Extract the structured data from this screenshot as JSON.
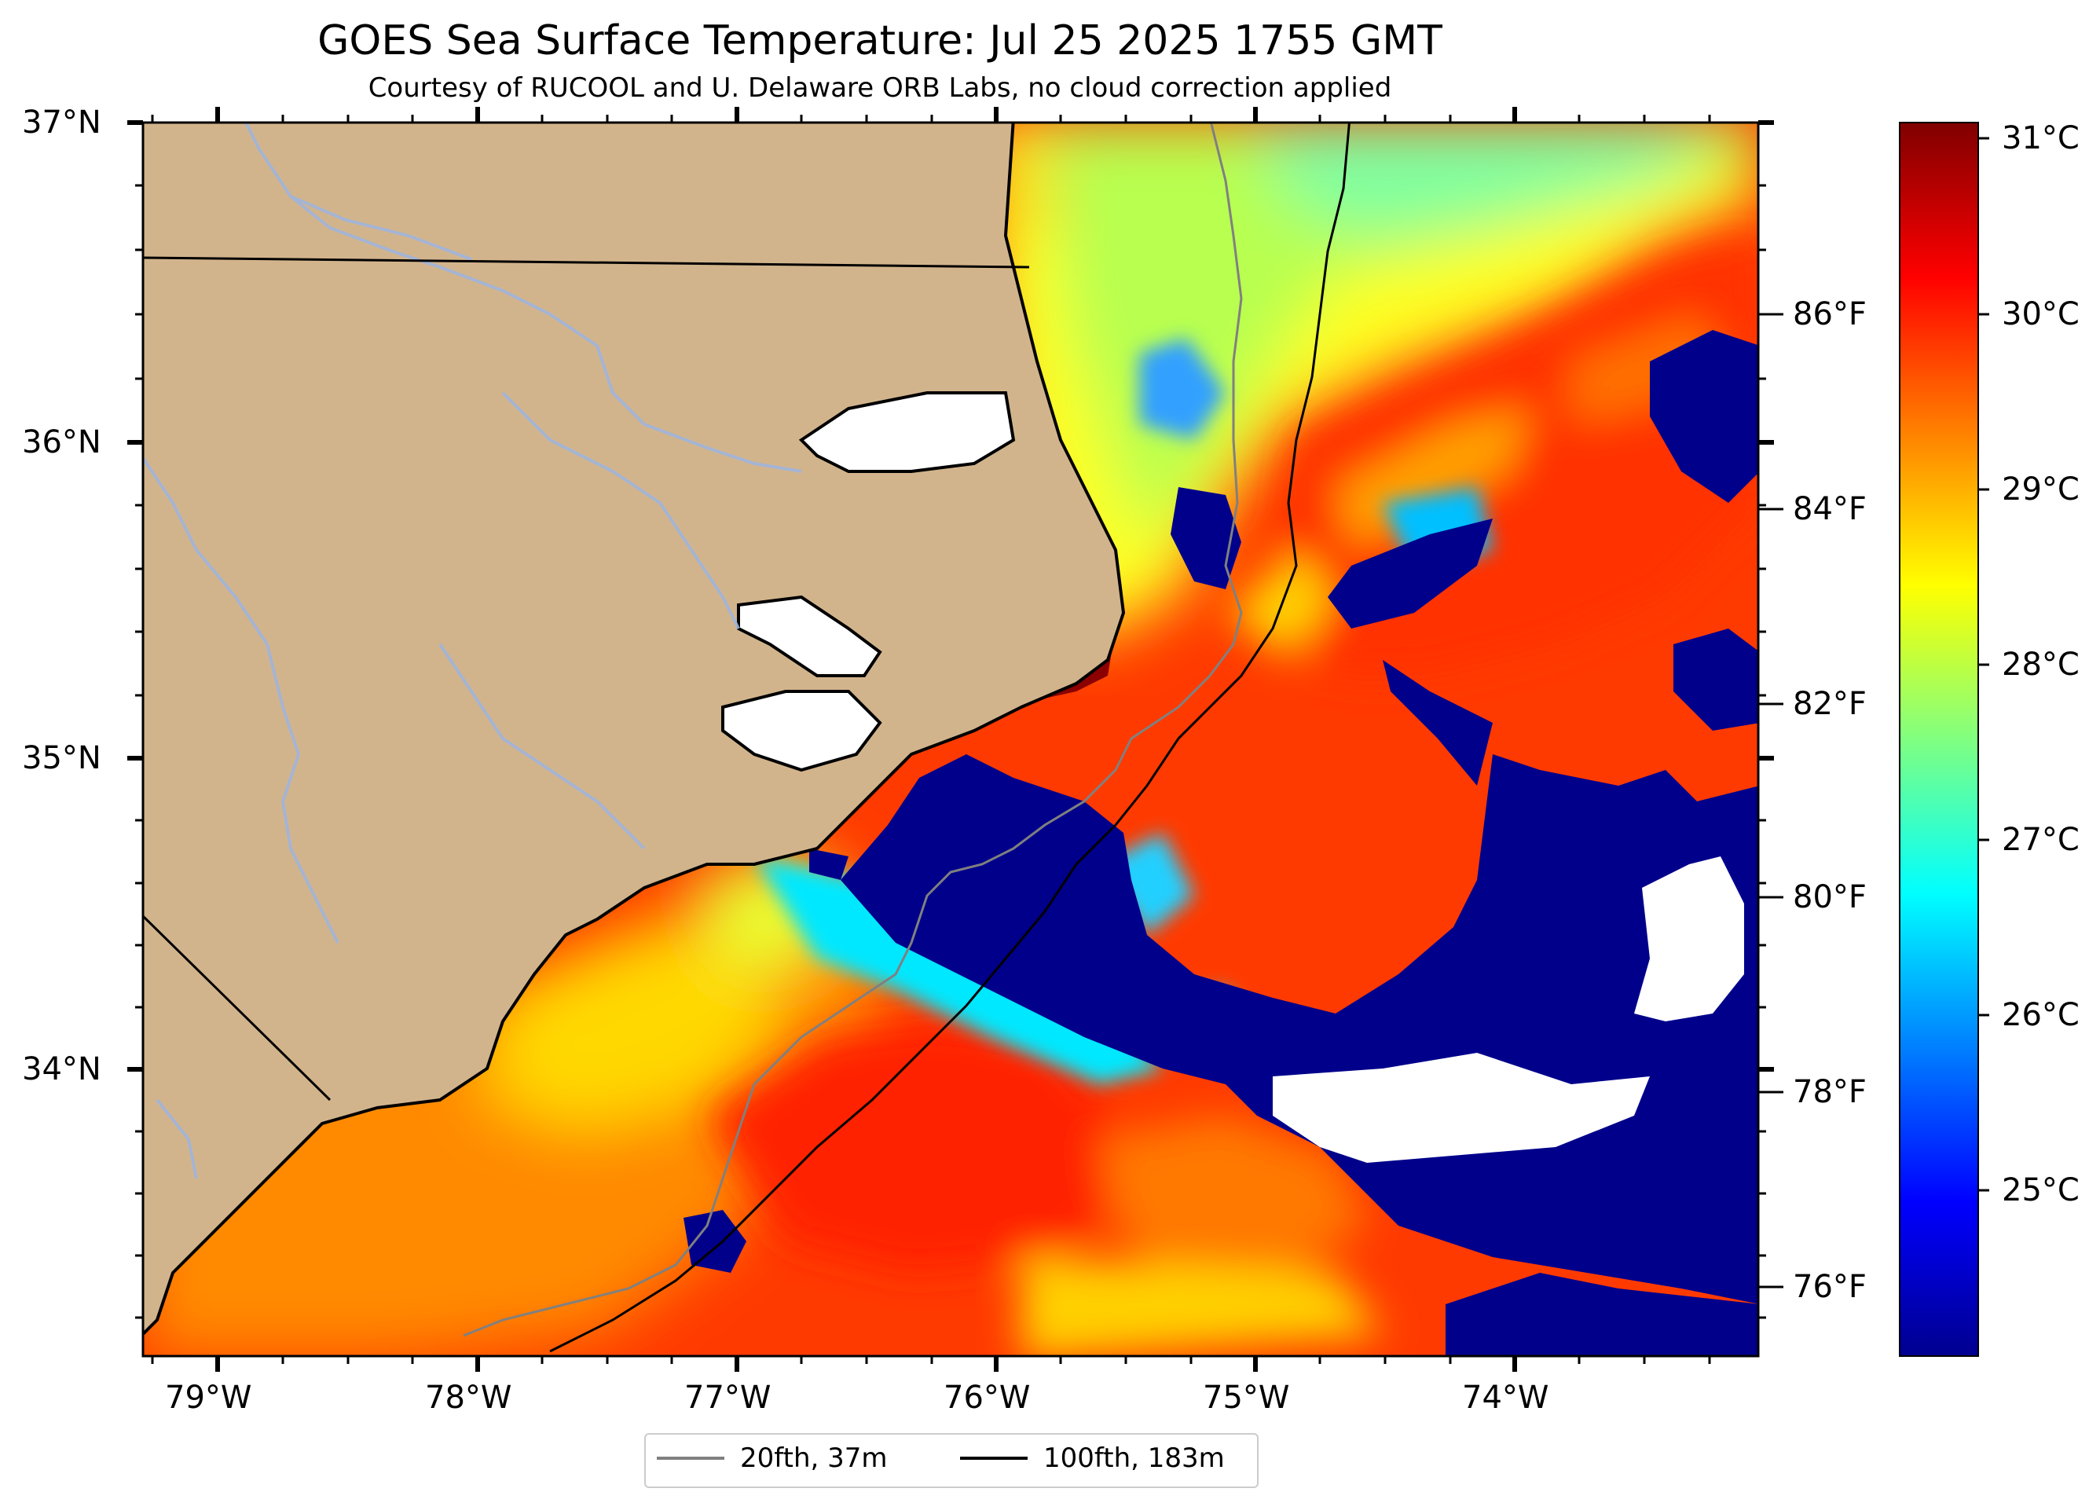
{
  "title": "GOES Sea Surface Temperature: Jul 25 2025 1755 GMT",
  "subtitle": "Courtesy of RUCOOL and U. Delaware ORB Labs, no cloud correction applied",
  "axes": {
    "latitude_labels": [
      "37°N",
      "36°N",
      "35°N",
      "34°N"
    ],
    "longitude_labels": [
      "79°W",
      "78°W",
      "77°W",
      "76°W",
      "75°W",
      "74°W"
    ],
    "fahrenheit_labels": [
      "86°F",
      "84°F",
      "82°F",
      "80°F",
      "78°F",
      "76°F"
    ],
    "celsius_labels": [
      "31°C",
      "30°C",
      "29°C",
      "28°C",
      "27°C",
      "26°C",
      "25°C"
    ]
  },
  "legend": {
    "items": [
      {
        "label": "20fth, 37m",
        "color": "#808080"
      },
      {
        "label": "100fth, 183m",
        "color": "#000000"
      }
    ]
  },
  "colors": {
    "land": "#d2b48c",
    "ocean_warm": "#ff2a00",
    "ocean_coldest": "#00008b",
    "cloud_mask": "#ffffff",
    "rivers": "#a0b4dc",
    "isobath_20fth": "#808080",
    "isobath_100fth": "#000000"
  },
  "colorbar": {
    "colormap": "jet",
    "celsius_range": [
      24.3,
      31.2
    ],
    "celsius_ticks": [
      31,
      30,
      29,
      28,
      27,
      26,
      25
    ],
    "fahrenheit_ticks": [
      86,
      84,
      82,
      80,
      78,
      76
    ]
  }
}
